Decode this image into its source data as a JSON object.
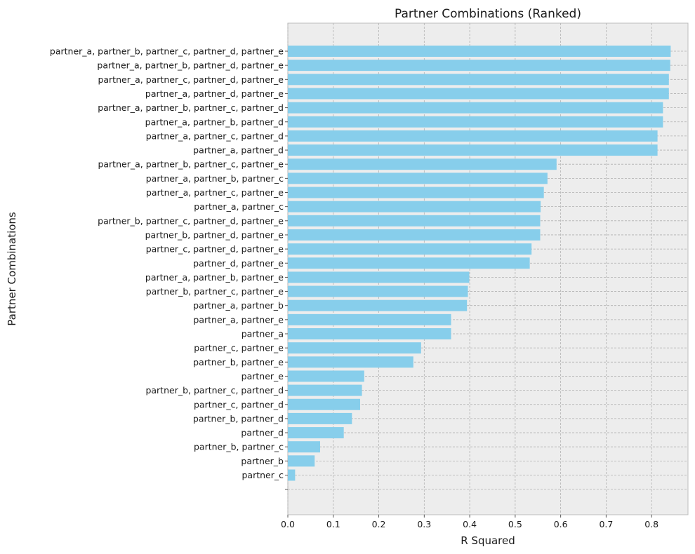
{
  "chart_data": {
    "type": "bar",
    "orientation": "horizontal",
    "title": "Partner Combinations (Ranked)",
    "xlabel": "R Squared",
    "ylabel": "Partner Combinations",
    "xlim": [
      0,
      0.88
    ],
    "xticks": [
      "0.0",
      "0.1",
      "0.2",
      "0.3",
      "0.4",
      "0.5",
      "0.6",
      "0.7",
      "0.8"
    ],
    "grid": true,
    "bar_color": "#87CEEB",
    "background_color": "#EDEDED",
    "categories": [
      "partner_a, partner_b, partner_c, partner_d, partner_e",
      "partner_a, partner_b, partner_d, partner_e",
      "partner_a, partner_c, partner_d, partner_e",
      "partner_a, partner_d, partner_e",
      "partner_a, partner_b, partner_c, partner_d",
      "partner_a, partner_b, partner_d",
      "partner_a, partner_c, partner_d",
      "partner_a, partner_d",
      "partner_a, partner_b, partner_c, partner_e",
      "partner_a, partner_b, partner_c",
      "partner_a, partner_c, partner_e",
      "partner_a, partner_c",
      "partner_b, partner_c, partner_d, partner_e",
      "partner_b, partner_d, partner_e",
      "partner_c, partner_d, partner_e",
      "partner_d, partner_e",
      "partner_a, partner_b, partner_e",
      "partner_b, partner_c, partner_e",
      "partner_a, partner_b",
      "partner_a, partner_e",
      "partner_a",
      "partner_c, partner_e",
      "partner_b, partner_e",
      "partner_e",
      "partner_b, partner_c, partner_d",
      "partner_c, partner_d",
      "partner_b, partner_d",
      "partner_d",
      "partner_b, partner_c",
      "partner_b",
      "partner_c",
      ""
    ],
    "values": [
      0.842,
      0.841,
      0.838,
      0.838,
      0.825,
      0.825,
      0.813,
      0.813,
      0.591,
      0.571,
      0.563,
      0.556,
      0.555,
      0.555,
      0.536,
      0.532,
      0.399,
      0.396,
      0.394,
      0.359,
      0.359,
      0.293,
      0.276,
      0.168,
      0.163,
      0.159,
      0.141,
      0.123,
      0.071,
      0.059,
      0.016,
      0.0
    ]
  }
}
